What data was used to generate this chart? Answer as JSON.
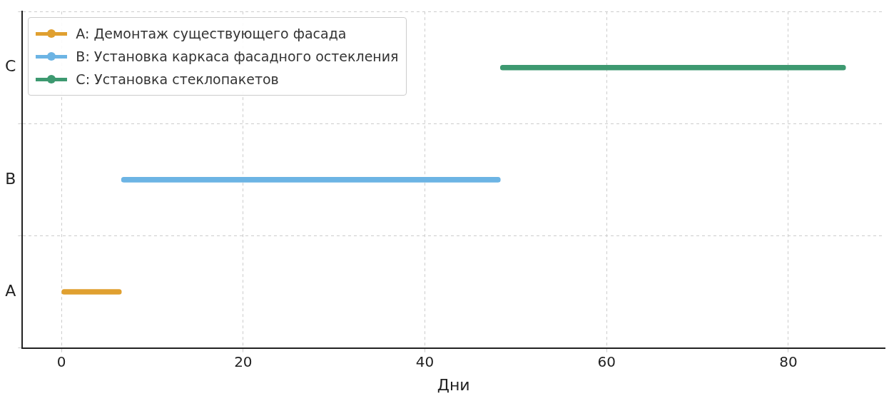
{
  "chart_data": {
    "type": "bar",
    "orientation": "horizontal",
    "xlabel": "Дни",
    "categories": [
      "C",
      "B",
      "A"
    ],
    "series": [
      {
        "name": "A: Демонтаж существующего фасада",
        "color": "#e0a030",
        "values": [
          null,
          null,
          6.6
        ],
        "base": [
          null,
          null,
          0
        ]
      },
      {
        "name": "B: Установка каркаса фасадного остекления",
        "color": "#6cb4e4",
        "values": [
          null,
          41.7,
          null
        ],
        "base": [
          null,
          6.6,
          null
        ]
      },
      {
        "name": "C: Установка стеклопакетов",
        "color": "#3d9970",
        "values": [
          38,
          null,
          null
        ],
        "base": [
          48.3,
          null,
          null
        ]
      }
    ],
    "xlim": [
      -4.3,
      90.6
    ],
    "xticks": [
      0,
      20,
      40,
      60,
      80
    ],
    "marker": "circle",
    "grid": true,
    "legend": "top left"
  }
}
